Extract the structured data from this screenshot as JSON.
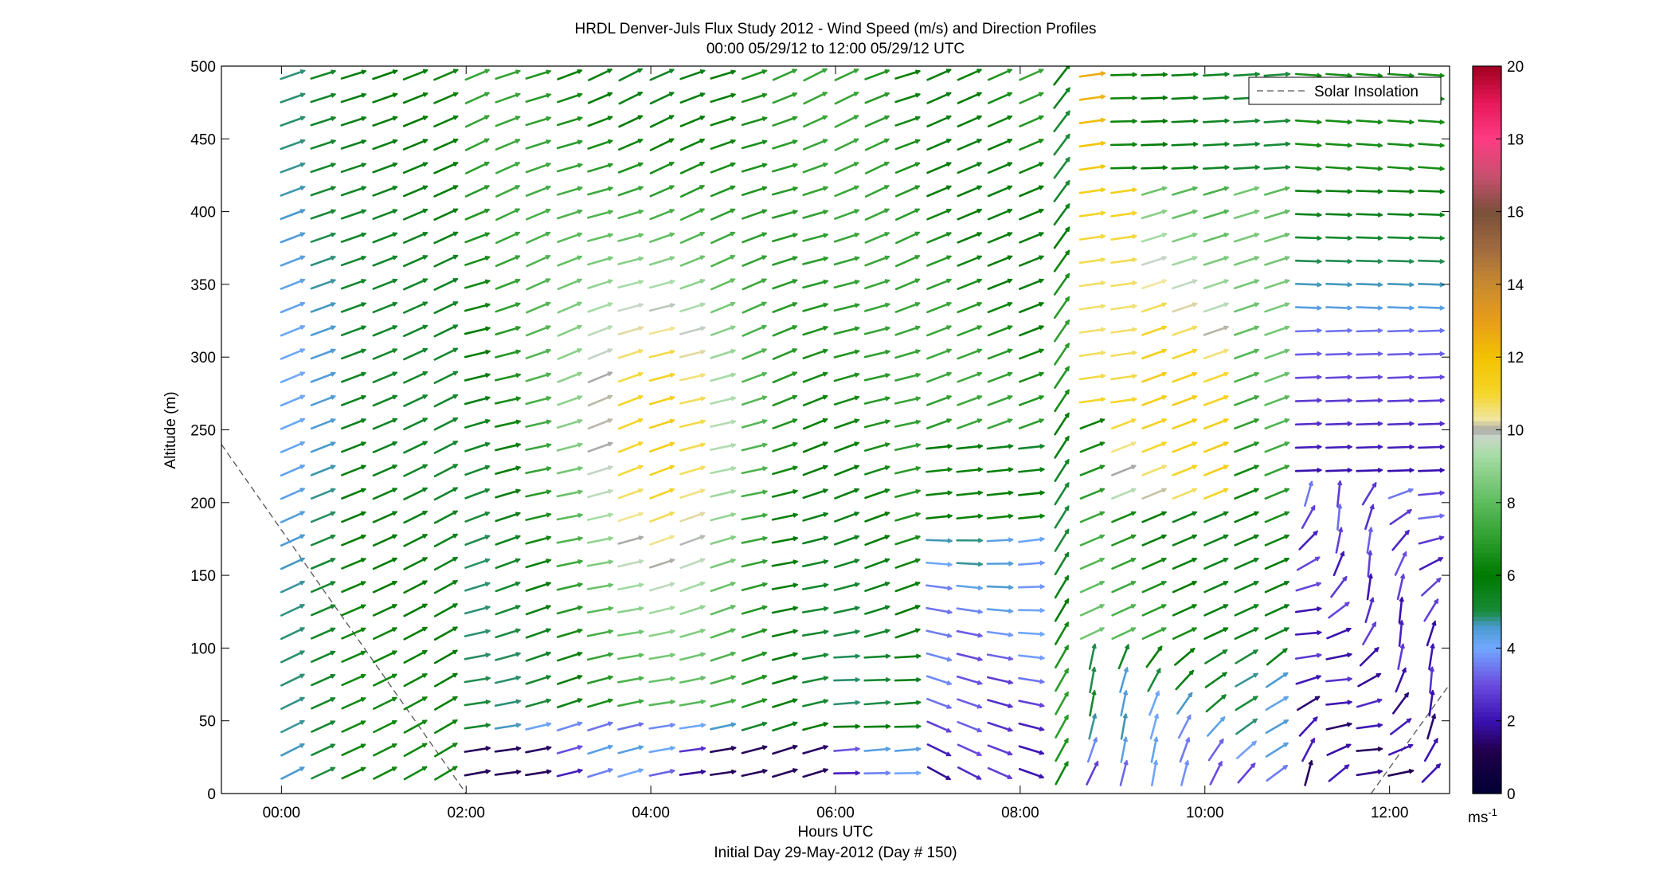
{
  "chart_data": {
    "type": "wind-barb-profile",
    "title": "HRDL Denver-Juls Flux Study 2012 - Wind Speed (m/s) and Direction Profiles",
    "subtitle": "00:00 05/29/12 to 12:00 05/29/12  UTC",
    "xlabel": "Hours UTC",
    "xlabel2": "Initial Day 29-May-2012 (Day # 150)",
    "ylabel": "Altitude (m)",
    "xlim_hours": [
      -0.65,
      12.65
    ],
    "ylim": [
      0,
      500
    ],
    "x_ticks": [
      0,
      2,
      4,
      6,
      8,
      10,
      12
    ],
    "x_tick_labels": [
      "00:00",
      "02:00",
      "04:00",
      "06:00",
      "08:00",
      "10:00",
      "12:00"
    ],
    "y_ticks": [
      0,
      50,
      100,
      150,
      200,
      250,
      300,
      350,
      400,
      450,
      500
    ],
    "y_tick_labels": [
      "0",
      "50",
      "100",
      "150",
      "200",
      "250",
      "300",
      "350",
      "400",
      "450",
      "500"
    ],
    "legend": {
      "label": "Solar Insolation",
      "position": "top-right",
      "line_style": "dashed"
    },
    "colorbar": {
      "range": [
        0,
        20
      ],
      "ticks": [
        0,
        2,
        4,
        6,
        8,
        10,
        12,
        14,
        16,
        18,
        20
      ],
      "tick_labels": [
        "0",
        "2",
        "4",
        "6",
        "8",
        "10",
        "12",
        "14",
        "16",
        "18",
        "20"
      ],
      "unit_base": "ms",
      "unit_exp": "-1",
      "stops": [
        {
          "v": 0,
          "c": "#000033"
        },
        {
          "v": 1.2,
          "c": "#22004e"
        },
        {
          "v": 2,
          "c": "#3a10b0"
        },
        {
          "v": 3,
          "c": "#6a4ce0"
        },
        {
          "v": 4,
          "c": "#72a8ff"
        },
        {
          "v": 4.6,
          "c": "#4a9ad0"
        },
        {
          "v": 5,
          "c": "#1a8a3a"
        },
        {
          "v": 6,
          "c": "#007a00"
        },
        {
          "v": 7,
          "c": "#2e9e2e"
        },
        {
          "v": 8,
          "c": "#5cbc5c"
        },
        {
          "v": 9.3,
          "c": "#a6dca6"
        },
        {
          "v": 9.8,
          "c": "#c8d8c8"
        },
        {
          "v": 10,
          "c": "#a8a8a8"
        },
        {
          "v": 10.3,
          "c": "#f0e6a0"
        },
        {
          "v": 11,
          "c": "#f5d62a"
        },
        {
          "v": 12,
          "c": "#f2c200"
        },
        {
          "v": 13,
          "c": "#e89e18"
        },
        {
          "v": 14,
          "c": "#c88a30"
        },
        {
          "v": 15,
          "c": "#a06a40"
        },
        {
          "v": 16,
          "c": "#7a5038"
        },
        {
          "v": 17,
          "c": "#c85070"
        },
        {
          "v": 18,
          "c": "#ff3c82"
        },
        {
          "v": 19,
          "c": "#e8185a"
        },
        {
          "v": 20,
          "c": "#a00020"
        }
      ]
    },
    "solar_insolation": {
      "segments": [
        [
          [
            -0.65,
            240
          ],
          [
            2.0,
            0
          ]
        ],
        [
          [
            11.8,
            0
          ],
          [
            12.65,
            75
          ]
        ]
      ]
    },
    "wind": {
      "times_hours": [
        0.12,
        0.45,
        0.78,
        1.12,
        1.45,
        1.78,
        2.12,
        2.45,
        2.78,
        3.12,
        3.45,
        3.78,
        4.12,
        4.45,
        4.78,
        5.12,
        5.45,
        5.78,
        6.12,
        6.45,
        6.78,
        7.12,
        7.45,
        7.78,
        8.12,
        8.45,
        8.78,
        9.12,
        9.45,
        9.78,
        10.12,
        10.45,
        10.78,
        11.12,
        11.45,
        11.78,
        12.12,
        12.45
      ],
      "altitudes_m": [
        14,
        30,
        46,
        62,
        78,
        94,
        110,
        126,
        142,
        158,
        174,
        190,
        206,
        222,
        238,
        254,
        270,
        286,
        302,
        318,
        334,
        350,
        366,
        382,
        398,
        414,
        430,
        446,
        462,
        478,
        494
      ],
      "max_altitude_m": [
        494,
        494,
        494,
        494,
        494,
        494,
        494,
        494,
        494,
        494,
        494,
        494,
        494,
        494,
        494,
        494,
        494,
        494,
        494,
        494,
        494,
        494,
        494,
        494,
        494,
        494,
        494,
        494,
        494,
        494,
        494,
        494,
        494,
        494,
        494,
        494,
        494,
        494
      ]
    }
  }
}
